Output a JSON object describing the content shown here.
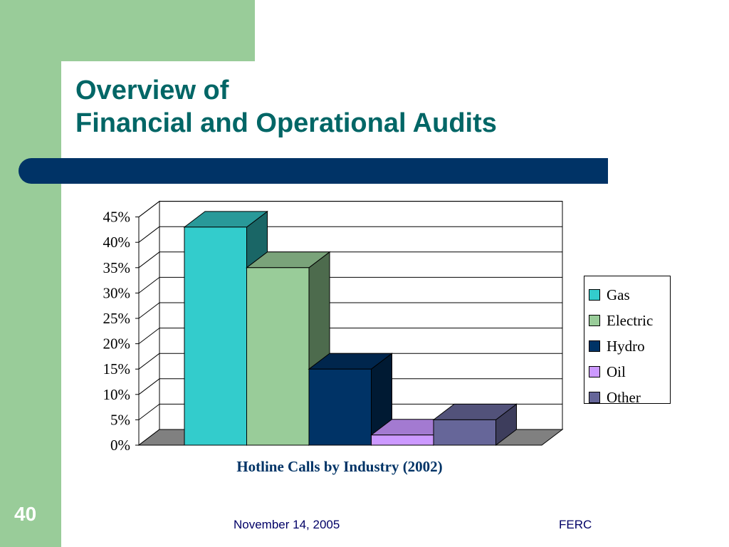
{
  "slide": {
    "title_line1": "Overview of",
    "title_line2": "Financial and Operational Audits",
    "page_number": "40",
    "footer_date": "November 14, 2005",
    "footer_org": "FERC"
  },
  "colors": {
    "band": "#99cc99",
    "rule": "#003366",
    "title": "#006666"
  },
  "chart_data": {
    "type": "bar",
    "title": "",
    "xlabel": "Hotline Calls by Industry (2002)",
    "ylabel": "",
    "ylim": [
      0,
      45
    ],
    "y_ticks": [
      "0%",
      "5%",
      "10%",
      "15%",
      "20%",
      "25%",
      "30%",
      "35%",
      "40%",
      "45%"
    ],
    "grid": true,
    "legend_position": "right",
    "series": [
      {
        "name": "Gas",
        "value": 43,
        "color": "#33cccc",
        "side": "#1a6666",
        "top": "#299999"
      },
      {
        "name": "Electric",
        "value": 35,
        "color": "#99cc99",
        "side": "#4d6b4d",
        "top": "#7aa37a"
      },
      {
        "name": "Hydro",
        "value": 15,
        "color": "#003366",
        "side": "#001a33",
        "top": "#00264d"
      },
      {
        "name": "Oil",
        "value": 2,
        "color": "#cc99ff",
        "side": "#8a66b3",
        "top": "#a37ad1"
      },
      {
        "name": "Other",
        "value": 5,
        "color": "#666699",
        "side": "#3d3d5c",
        "top": "#52527a"
      }
    ]
  }
}
